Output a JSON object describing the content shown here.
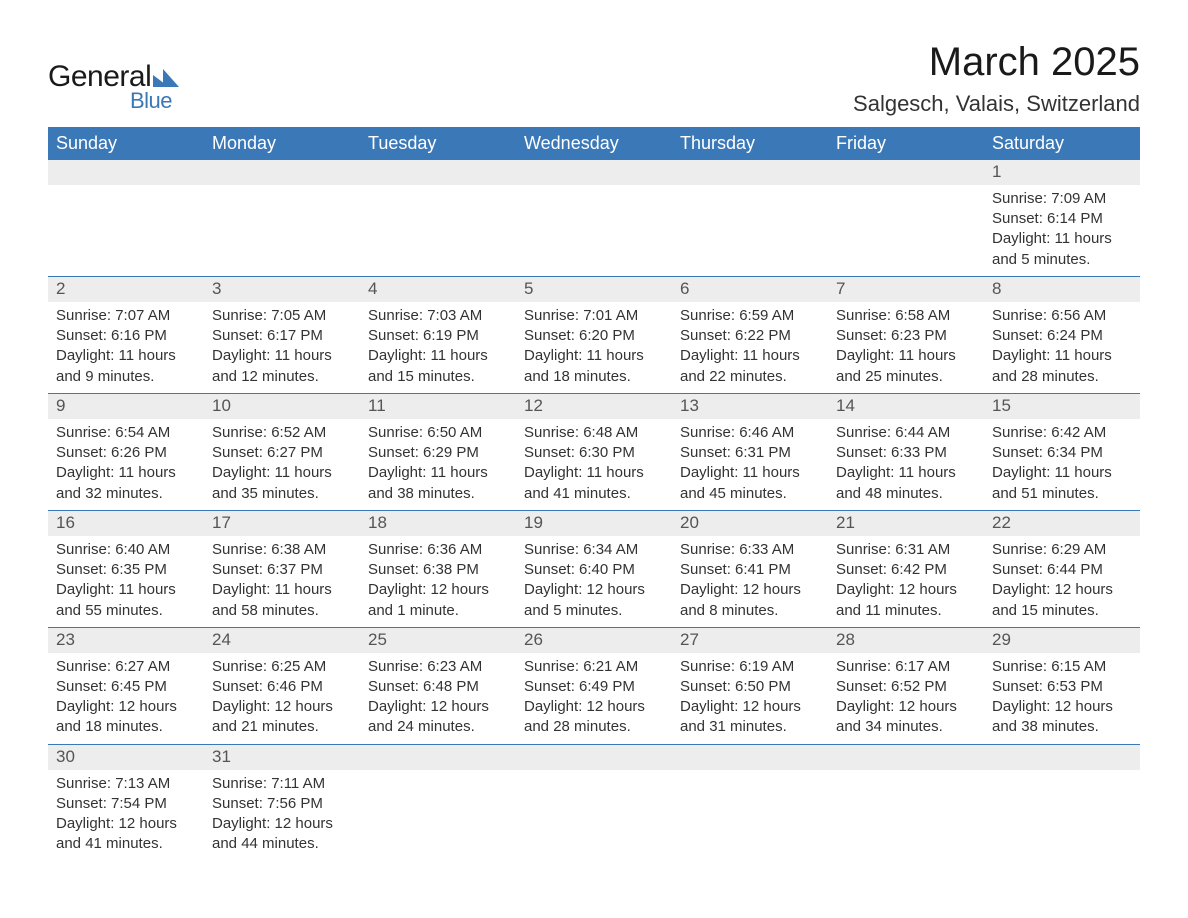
{
  "brand": {
    "general": "General",
    "blue": "Blue",
    "tri_color": "#3b78b8"
  },
  "title": "March 2025",
  "location": "Salgesch, Valais, Switzerland",
  "colors": {
    "header_bg": "#3b78b8",
    "header_text": "#ffffff",
    "daynum_bg": "#ededed",
    "row_border": "#3b78b8",
    "body_text": "#333333",
    "page_bg": "#ffffff"
  },
  "typography": {
    "title_fontsize": 40,
    "location_fontsize": 22,
    "dayheader_fontsize": 18,
    "cell_fontsize": 15
  },
  "day_headers": [
    "Sunday",
    "Monday",
    "Tuesday",
    "Wednesday",
    "Thursday",
    "Friday",
    "Saturday"
  ],
  "weeks": [
    [
      null,
      null,
      null,
      null,
      null,
      null,
      {
        "n": "1",
        "sunrise": "Sunrise: 7:09 AM",
        "sunset": "Sunset: 6:14 PM",
        "daylight": "Daylight: 11 hours and 5 minutes."
      }
    ],
    [
      {
        "n": "2",
        "sunrise": "Sunrise: 7:07 AM",
        "sunset": "Sunset: 6:16 PM",
        "daylight": "Daylight: 11 hours and 9 minutes."
      },
      {
        "n": "3",
        "sunrise": "Sunrise: 7:05 AM",
        "sunset": "Sunset: 6:17 PM",
        "daylight": "Daylight: 11 hours and 12 minutes."
      },
      {
        "n": "4",
        "sunrise": "Sunrise: 7:03 AM",
        "sunset": "Sunset: 6:19 PM",
        "daylight": "Daylight: 11 hours and 15 minutes."
      },
      {
        "n": "5",
        "sunrise": "Sunrise: 7:01 AM",
        "sunset": "Sunset: 6:20 PM",
        "daylight": "Daylight: 11 hours and 18 minutes."
      },
      {
        "n": "6",
        "sunrise": "Sunrise: 6:59 AM",
        "sunset": "Sunset: 6:22 PM",
        "daylight": "Daylight: 11 hours and 22 minutes."
      },
      {
        "n": "7",
        "sunrise": "Sunrise: 6:58 AM",
        "sunset": "Sunset: 6:23 PM",
        "daylight": "Daylight: 11 hours and 25 minutes."
      },
      {
        "n": "8",
        "sunrise": "Sunrise: 6:56 AM",
        "sunset": "Sunset: 6:24 PM",
        "daylight": "Daylight: 11 hours and 28 minutes."
      }
    ],
    [
      {
        "n": "9",
        "sunrise": "Sunrise: 6:54 AM",
        "sunset": "Sunset: 6:26 PM",
        "daylight": "Daylight: 11 hours and 32 minutes."
      },
      {
        "n": "10",
        "sunrise": "Sunrise: 6:52 AM",
        "sunset": "Sunset: 6:27 PM",
        "daylight": "Daylight: 11 hours and 35 minutes."
      },
      {
        "n": "11",
        "sunrise": "Sunrise: 6:50 AM",
        "sunset": "Sunset: 6:29 PM",
        "daylight": "Daylight: 11 hours and 38 minutes."
      },
      {
        "n": "12",
        "sunrise": "Sunrise: 6:48 AM",
        "sunset": "Sunset: 6:30 PM",
        "daylight": "Daylight: 11 hours and 41 minutes."
      },
      {
        "n": "13",
        "sunrise": "Sunrise: 6:46 AM",
        "sunset": "Sunset: 6:31 PM",
        "daylight": "Daylight: 11 hours and 45 minutes."
      },
      {
        "n": "14",
        "sunrise": "Sunrise: 6:44 AM",
        "sunset": "Sunset: 6:33 PM",
        "daylight": "Daylight: 11 hours and 48 minutes."
      },
      {
        "n": "15",
        "sunrise": "Sunrise: 6:42 AM",
        "sunset": "Sunset: 6:34 PM",
        "daylight": "Daylight: 11 hours and 51 minutes."
      }
    ],
    [
      {
        "n": "16",
        "sunrise": "Sunrise: 6:40 AM",
        "sunset": "Sunset: 6:35 PM",
        "daylight": "Daylight: 11 hours and 55 minutes."
      },
      {
        "n": "17",
        "sunrise": "Sunrise: 6:38 AM",
        "sunset": "Sunset: 6:37 PM",
        "daylight": "Daylight: 11 hours and 58 minutes."
      },
      {
        "n": "18",
        "sunrise": "Sunrise: 6:36 AM",
        "sunset": "Sunset: 6:38 PM",
        "daylight": "Daylight: 12 hours and 1 minute."
      },
      {
        "n": "19",
        "sunrise": "Sunrise: 6:34 AM",
        "sunset": "Sunset: 6:40 PM",
        "daylight": "Daylight: 12 hours and 5 minutes."
      },
      {
        "n": "20",
        "sunrise": "Sunrise: 6:33 AM",
        "sunset": "Sunset: 6:41 PM",
        "daylight": "Daylight: 12 hours and 8 minutes."
      },
      {
        "n": "21",
        "sunrise": "Sunrise: 6:31 AM",
        "sunset": "Sunset: 6:42 PM",
        "daylight": "Daylight: 12 hours and 11 minutes."
      },
      {
        "n": "22",
        "sunrise": "Sunrise: 6:29 AM",
        "sunset": "Sunset: 6:44 PM",
        "daylight": "Daylight: 12 hours and 15 minutes."
      }
    ],
    [
      {
        "n": "23",
        "sunrise": "Sunrise: 6:27 AM",
        "sunset": "Sunset: 6:45 PM",
        "daylight": "Daylight: 12 hours and 18 minutes."
      },
      {
        "n": "24",
        "sunrise": "Sunrise: 6:25 AM",
        "sunset": "Sunset: 6:46 PM",
        "daylight": "Daylight: 12 hours and 21 minutes."
      },
      {
        "n": "25",
        "sunrise": "Sunrise: 6:23 AM",
        "sunset": "Sunset: 6:48 PM",
        "daylight": "Daylight: 12 hours and 24 minutes."
      },
      {
        "n": "26",
        "sunrise": "Sunrise: 6:21 AM",
        "sunset": "Sunset: 6:49 PM",
        "daylight": "Daylight: 12 hours and 28 minutes."
      },
      {
        "n": "27",
        "sunrise": "Sunrise: 6:19 AM",
        "sunset": "Sunset: 6:50 PM",
        "daylight": "Daylight: 12 hours and 31 minutes."
      },
      {
        "n": "28",
        "sunrise": "Sunrise: 6:17 AM",
        "sunset": "Sunset: 6:52 PM",
        "daylight": "Daylight: 12 hours and 34 minutes."
      },
      {
        "n": "29",
        "sunrise": "Sunrise: 6:15 AM",
        "sunset": "Sunset: 6:53 PM",
        "daylight": "Daylight: 12 hours and 38 minutes."
      }
    ],
    [
      {
        "n": "30",
        "sunrise": "Sunrise: 7:13 AM",
        "sunset": "Sunset: 7:54 PM",
        "daylight": "Daylight: 12 hours and 41 minutes."
      },
      {
        "n": "31",
        "sunrise": "Sunrise: 7:11 AM",
        "sunset": "Sunset: 7:56 PM",
        "daylight": "Daylight: 12 hours and 44 minutes."
      },
      null,
      null,
      null,
      null,
      null
    ]
  ]
}
